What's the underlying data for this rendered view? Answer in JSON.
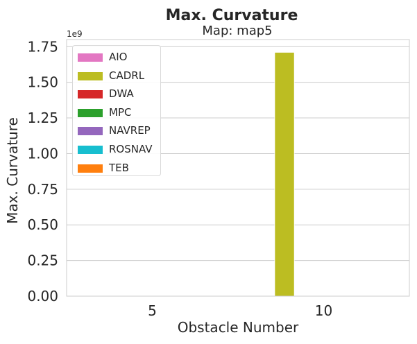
{
  "chart_data": {
    "type": "bar",
    "title": "Max. Curvature",
    "subtitle": "Map: map5",
    "xlabel": "Obstacle Number",
    "ylabel": "Max. Curvature",
    "y_offset_label": "1e9",
    "categories": [
      "5",
      "10"
    ],
    "ylim": [
      0,
      1.8
    ],
    "yticks": [
      "0.00",
      "0.25",
      "0.50",
      "0.75",
      "1.00",
      "1.25",
      "1.50",
      "1.75"
    ],
    "grid": true,
    "legend_position": "top-left",
    "series": [
      {
        "name": "AIO",
        "color": "#e377c2",
        "values": [
          0,
          0
        ]
      },
      {
        "name": "CADRL",
        "color": "#bcbd22",
        "values": [
          0,
          1.71
        ]
      },
      {
        "name": "DWA",
        "color": "#d62728",
        "values": [
          0,
          0
        ]
      },
      {
        "name": "MPC",
        "color": "#2ca02c",
        "values": [
          0,
          0
        ]
      },
      {
        "name": "NAVREP",
        "color": "#9467bd",
        "values": [
          0,
          0
        ]
      },
      {
        "name": "ROSNAV",
        "color": "#17becf",
        "values": [
          0,
          0
        ]
      },
      {
        "name": "TEB",
        "color": "#ff7f0e",
        "values": [
          0,
          0
        ]
      }
    ]
  }
}
